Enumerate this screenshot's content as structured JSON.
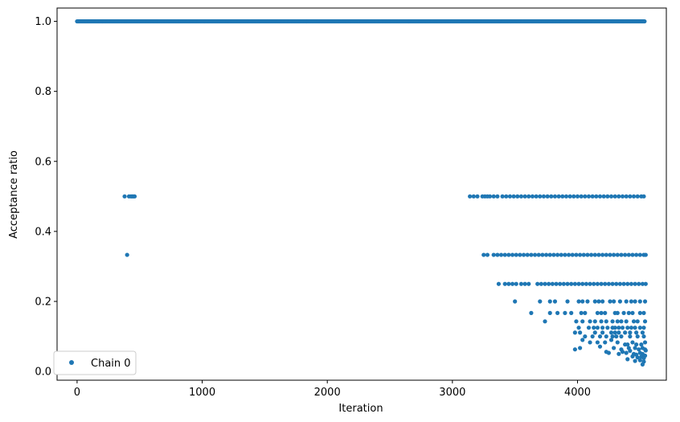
{
  "chart_data": {
    "type": "scatter",
    "xlabel": "Iteration",
    "ylabel": "Acceptance ratio",
    "xlim": [
      -160,
      4710
    ],
    "ylim": [
      -0.025,
      1.038
    ],
    "xticks": [
      0,
      1000,
      2000,
      3000,
      4000
    ],
    "xtick_labels": [
      "0",
      "1000",
      "2000",
      "3000",
      "4000"
    ],
    "yticks": [
      0.0,
      0.2,
      0.4,
      0.6,
      0.8,
      1.0
    ],
    "ytick_labels": [
      "0.0",
      "0.2",
      "0.4",
      "0.6",
      "0.8",
      "1.0"
    ],
    "grid": false,
    "legend": {
      "position": "lower-left",
      "entries": [
        "Chain 0"
      ]
    },
    "marker_color": "#1f77b4",
    "series": [
      {
        "name": "Chain 0",
        "points": {
          "band_1_0": {
            "y": 1.0,
            "x_range": [
              0,
              4540
            ]
          },
          "early_0_5": [
            [
              380,
              0.5
            ],
            [
              415,
              0.5
            ],
            [
              430,
              0.5
            ],
            [
              440,
              0.5
            ],
            [
              450,
              0.5
            ],
            [
              460,
              0.5
            ]
          ],
          "early_0_333": [
            [
              400,
              0.333
            ]
          ],
          "band_0_5": [
            [
              3140,
              0.5
            ],
            [
              3170,
              0.5
            ],
            [
              3200,
              0.5
            ],
            [
              3240,
              0.5
            ],
            [
              3260,
              0.5
            ],
            [
              3280,
              0.5
            ],
            [
              3300,
              0.5
            ],
            [
              3330,
              0.5
            ],
            [
              3360,
              0.5
            ],
            [
              3400,
              0.5
            ],
            [
              3430,
              0.5
            ],
            [
              3460,
              0.5
            ],
            [
              3490,
              0.5
            ],
            [
              3520,
              0.5
            ],
            [
              3550,
              0.5
            ],
            [
              3580,
              0.5
            ],
            [
              3610,
              0.5
            ],
            [
              3640,
              0.5
            ],
            [
              3670,
              0.5
            ],
            [
              3700,
              0.5
            ],
            [
              3730,
              0.5
            ],
            [
              3760,
              0.5
            ],
            [
              3790,
              0.5
            ],
            [
              3820,
              0.5
            ],
            [
              3850,
              0.5
            ],
            [
              3880,
              0.5
            ],
            [
              3910,
              0.5
            ],
            [
              3940,
              0.5
            ],
            [
              3970,
              0.5
            ],
            [
              4000,
              0.5
            ],
            [
              4030,
              0.5
            ],
            [
              4060,
              0.5
            ],
            [
              4090,
              0.5
            ],
            [
              4120,
              0.5
            ],
            [
              4150,
              0.5
            ],
            [
              4180,
              0.5
            ],
            [
              4210,
              0.5
            ],
            [
              4240,
              0.5
            ],
            [
              4270,
              0.5
            ],
            [
              4300,
              0.5
            ],
            [
              4330,
              0.5
            ],
            [
              4360,
              0.5
            ],
            [
              4390,
              0.5
            ],
            [
              4420,
              0.5
            ],
            [
              4450,
              0.5
            ],
            [
              4480,
              0.5
            ],
            [
              4510,
              0.5
            ],
            [
              4530,
              0.5
            ]
          ],
          "band_0_333": [
            [
              3250,
              0.333
            ],
            [
              3280,
              0.333
            ],
            [
              3330,
              0.333
            ],
            [
              3360,
              0.333
            ],
            [
              3390,
              0.333
            ],
            [
              3420,
              0.333
            ],
            [
              3450,
              0.333
            ],
            [
              3480,
              0.333
            ],
            [
              3510,
              0.333
            ],
            [
              3540,
              0.333
            ],
            [
              3570,
              0.333
            ],
            [
              3600,
              0.333
            ],
            [
              3630,
              0.333
            ],
            [
              3660,
              0.333
            ],
            [
              3690,
              0.333
            ],
            [
              3720,
              0.333
            ],
            [
              3750,
              0.333
            ],
            [
              3780,
              0.333
            ],
            [
              3810,
              0.333
            ],
            [
              3840,
              0.333
            ],
            [
              3870,
              0.333
            ],
            [
              3900,
              0.333
            ],
            [
              3930,
              0.333
            ],
            [
              3960,
              0.333
            ],
            [
              3990,
              0.333
            ],
            [
              4020,
              0.333
            ],
            [
              4050,
              0.333
            ],
            [
              4080,
              0.333
            ],
            [
              4110,
              0.333
            ],
            [
              4140,
              0.333
            ],
            [
              4170,
              0.333
            ],
            [
              4200,
              0.333
            ],
            [
              4230,
              0.333
            ],
            [
              4260,
              0.333
            ],
            [
              4290,
              0.333
            ],
            [
              4320,
              0.333
            ],
            [
              4350,
              0.333
            ],
            [
              4380,
              0.333
            ],
            [
              4410,
              0.333
            ],
            [
              4440,
              0.333
            ],
            [
              4470,
              0.333
            ],
            [
              4500,
              0.333
            ],
            [
              4530,
              0.333
            ],
            [
              4545,
              0.333
            ]
          ],
          "band_0_25": [
            [
              3370,
              0.25
            ],
            [
              3420,
              0.25
            ],
            [
              3450,
              0.25
            ],
            [
              3480,
              0.25
            ],
            [
              3510,
              0.25
            ],
            [
              3550,
              0.25
            ],
            [
              3580,
              0.25
            ],
            [
              3610,
              0.25
            ],
            [
              3680,
              0.25
            ],
            [
              3710,
              0.25
            ],
            [
              3740,
              0.25
            ],
            [
              3770,
              0.25
            ],
            [
              3800,
              0.25
            ],
            [
              3830,
              0.25
            ],
            [
              3860,
              0.25
            ],
            [
              3890,
              0.25
            ],
            [
              3920,
              0.25
            ],
            [
              3950,
              0.25
            ],
            [
              3980,
              0.25
            ],
            [
              4010,
              0.25
            ],
            [
              4040,
              0.25
            ],
            [
              4070,
              0.25
            ],
            [
              4100,
              0.25
            ],
            [
              4130,
              0.25
            ],
            [
              4160,
              0.25
            ],
            [
              4190,
              0.25
            ],
            [
              4220,
              0.25
            ],
            [
              4250,
              0.25
            ],
            [
              4280,
              0.25
            ],
            [
              4310,
              0.25
            ],
            [
              4340,
              0.25
            ],
            [
              4370,
              0.25
            ],
            [
              4400,
              0.25
            ],
            [
              4430,
              0.25
            ],
            [
              4460,
              0.25
            ],
            [
              4490,
              0.25
            ],
            [
              4520,
              0.25
            ],
            [
              4545,
              0.25
            ]
          ],
          "band_0_2": [
            [
              3500,
              0.2
            ],
            [
              3700,
              0.2
            ],
            [
              3780,
              0.2
            ],
            [
              3820,
              0.2
            ],
            [
              3920,
              0.2
            ],
            [
              4010,
              0.2
            ],
            [
              4040,
              0.2
            ],
            [
              4080,
              0.2
            ],
            [
              4140,
              0.2
            ],
            [
              4170,
              0.2
            ],
            [
              4200,
              0.2
            ],
            [
              4260,
              0.2
            ],
            [
              4290,
              0.2
            ],
            [
              4340,
              0.2
            ],
            [
              4390,
              0.2
            ],
            [
              4430,
              0.2
            ],
            [
              4460,
              0.2
            ],
            [
              4500,
              0.2
            ],
            [
              4540,
              0.2
            ]
          ],
          "band_0_167": [
            [
              3630,
              0.167
            ],
            [
              3780,
              0.167
            ],
            [
              3840,
              0.167
            ],
            [
              3900,
              0.167
            ],
            [
              3950,
              0.167
            ],
            [
              4030,
              0.167
            ],
            [
              4060,
              0.167
            ],
            [
              4160,
              0.167
            ],
            [
              4190,
              0.167
            ],
            [
              4220,
              0.167
            ],
            [
              4300,
              0.167
            ],
            [
              4320,
              0.167
            ],
            [
              4370,
              0.167
            ],
            [
              4410,
              0.167
            ],
            [
              4440,
              0.167
            ],
            [
              4500,
              0.167
            ],
            [
              4530,
              0.167
            ]
          ],
          "band_0_143": [
            [
              3740,
              0.143
            ],
            [
              3990,
              0.143
            ],
            [
              4040,
              0.143
            ],
            [
              4100,
              0.143
            ],
            [
              4140,
              0.143
            ],
            [
              4190,
              0.143
            ],
            [
              4230,
              0.143
            ],
            [
              4280,
              0.143
            ],
            [
              4320,
              0.143
            ],
            [
              4350,
              0.143
            ],
            [
              4390,
              0.143
            ],
            [
              4450,
              0.143
            ],
            [
              4480,
              0.143
            ],
            [
              4540,
              0.143
            ]
          ],
          "band_0_125": [
            [
              4010,
              0.125
            ],
            [
              4090,
              0.125
            ],
            [
              4130,
              0.125
            ],
            [
              4160,
              0.125
            ],
            [
              4200,
              0.125
            ],
            [
              4240,
              0.125
            ],
            [
              4280,
              0.125
            ],
            [
              4300,
              0.125
            ],
            [
              4330,
              0.125
            ],
            [
              4360,
              0.125
            ],
            [
              4400,
              0.125
            ],
            [
              4430,
              0.125
            ],
            [
              4460,
              0.125
            ],
            [
              4500,
              0.125
            ],
            [
              4530,
              0.125
            ]
          ],
          "band_0_111": [
            [
              3980,
              0.111
            ],
            [
              4020,
              0.111
            ],
            [
              4140,
              0.111
            ],
            [
              4200,
              0.111
            ],
            [
              4270,
              0.111
            ],
            [
              4300,
              0.111
            ],
            [
              4330,
              0.111
            ],
            [
              4380,
              0.111
            ],
            [
              4420,
              0.111
            ],
            [
              4470,
              0.111
            ],
            [
              4520,
              0.111
            ]
          ],
          "band_0_1": [
            [
              4060,
              0.1
            ],
            [
              4120,
              0.1
            ],
            [
              4180,
              0.1
            ],
            [
              4230,
              0.1
            ],
            [
              4280,
              0.1
            ],
            [
              4310,
              0.1
            ],
            [
              4350,
              0.1
            ],
            [
              4420,
              0.1
            ],
            [
              4480,
              0.1
            ],
            [
              4530,
              0.1
            ]
          ],
          "low_scatter": [
            [
              4040,
              0.09
            ],
            [
              4100,
              0.083
            ],
            [
              4220,
              0.083
            ],
            [
              4160,
              0.083
            ],
            [
              4270,
              0.09
            ],
            [
              4320,
              0.083
            ],
            [
              4380,
              0.077
            ],
            [
              4400,
              0.077
            ],
            [
              4440,
              0.083
            ],
            [
              4470,
              0.077
            ],
            [
              4510,
              0.077
            ],
            [
              4540,
              0.083
            ],
            [
              3980,
              0.063
            ],
            [
              4020,
              0.067
            ],
            [
              4180,
              0.071
            ],
            [
              4290,
              0.067
            ],
            [
              4350,
              0.063
            ],
            [
              4410,
              0.067
            ],
            [
              4460,
              0.067
            ],
            [
              4490,
              0.063
            ],
            [
              4520,
              0.067
            ],
            [
              4540,
              0.063
            ],
            [
              4230,
              0.056
            ],
            [
              4250,
              0.053
            ],
            [
              4330,
              0.05
            ],
            [
              4360,
              0.056
            ],
            [
              4390,
              0.053
            ],
            [
              4420,
              0.059
            ],
            [
              4450,
              0.05
            ],
            [
              4470,
              0.048
            ],
            [
              4500,
              0.053
            ],
            [
              4520,
              0.05
            ],
            [
              4540,
              0.045
            ],
            [
              4440,
              0.043
            ],
            [
              4480,
              0.04
            ],
            [
              4510,
              0.042
            ],
            [
              4530,
              0.038
            ],
            [
              4400,
              0.035
            ],
            [
              4460,
              0.03
            ],
            [
              4500,
              0.032
            ],
            [
              4530,
              0.028
            ],
            [
              4520,
              0.02
            ],
            [
              4545,
              0.06
            ]
          ]
        }
      }
    ]
  }
}
